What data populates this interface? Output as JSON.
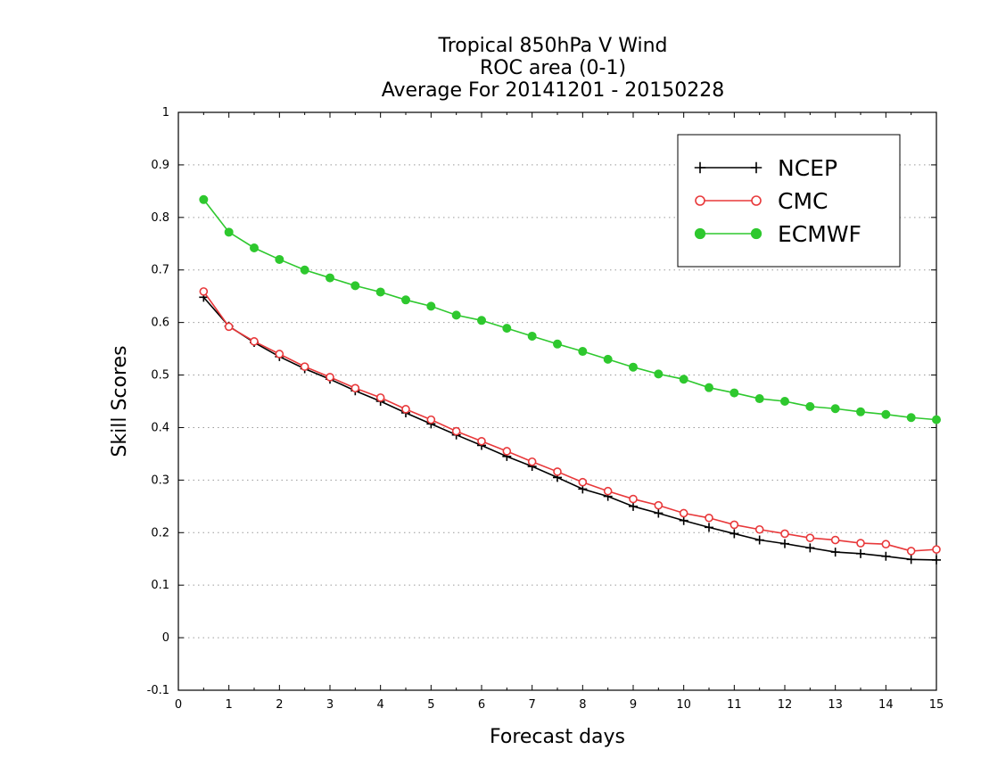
{
  "chart_data": {
    "type": "line",
    "title": [
      "Tropical 850hPa V Wind",
      "ROC area (0-1)",
      "Average For 20141201 - 20150228"
    ],
    "xlabel": "Forecast days",
    "ylabel": "Skill Scores",
    "xlim": [
      0,
      15
    ],
    "ylim": [
      -0.1,
      1
    ],
    "xticks": [
      0,
      1,
      2,
      3,
      4,
      5,
      6,
      7,
      8,
      9,
      10,
      11,
      12,
      13,
      14,
      15
    ],
    "yticks": [
      -0.1,
      0,
      0.1,
      0.2,
      0.3,
      0.4,
      0.5,
      0.6,
      0.7,
      0.8,
      0.9,
      1
    ],
    "ytick_labels": [
      "-0.1",
      "0",
      "0.1",
      "0.2",
      "0.3",
      "0.4",
      "0.5",
      "0.6",
      "0.7",
      "0.8",
      "0.9",
      "1"
    ],
    "grid": "horizontal dotted",
    "legend_position": "top-right",
    "x": [
      0.5,
      1,
      1.5,
      2,
      2.5,
      3,
      3.5,
      4,
      4.5,
      5,
      5.5,
      6,
      6.5,
      7,
      7.5,
      8,
      8.5,
      9,
      9.5,
      10,
      10.5,
      11,
      11.5,
      12,
      12.5,
      13,
      13.5,
      14,
      14.5,
      15
    ],
    "series": [
      {
        "name": "NCEP",
        "color": "#000000",
        "marker": "plus",
        "values": [
          0.648,
          0.593,
          0.562,
          0.535,
          0.512,
          0.492,
          0.47,
          0.45,
          0.428,
          0.407,
          0.386,
          0.366,
          0.345,
          0.326,
          0.305,
          0.283,
          0.269,
          0.25,
          0.237,
          0.223,
          0.21,
          0.198,
          0.186,
          0.179,
          0.171,
          0.163,
          0.16,
          0.155,
          0.149,
          0.148
        ]
      },
      {
        "name": "CMC",
        "color": "#e8383a",
        "marker": "open-circle",
        "values": [
          0.659,
          0.592,
          0.564,
          0.54,
          0.516,
          0.496,
          0.475,
          0.457,
          0.435,
          0.415,
          0.393,
          0.374,
          0.355,
          0.335,
          0.316,
          0.296,
          0.279,
          0.264,
          0.252,
          0.237,
          0.228,
          0.215,
          0.206,
          0.198,
          0.19,
          0.186,
          0.18,
          0.178,
          0.165,
          0.168
        ]
      },
      {
        "name": "ECMWF",
        "color": "#2ec82e",
        "marker": "filled-circle",
        "values": [
          0.834,
          0.772,
          0.742,
          0.72,
          0.7,
          0.685,
          0.67,
          0.658,
          0.643,
          0.631,
          0.614,
          0.604,
          0.589,
          0.574,
          0.559,
          0.545,
          0.53,
          0.515,
          0.502,
          0.492,
          0.476,
          0.466,
          0.455,
          0.45,
          0.44,
          0.436,
          0.43,
          0.425,
          0.419,
          0.415
        ]
      }
    ]
  }
}
